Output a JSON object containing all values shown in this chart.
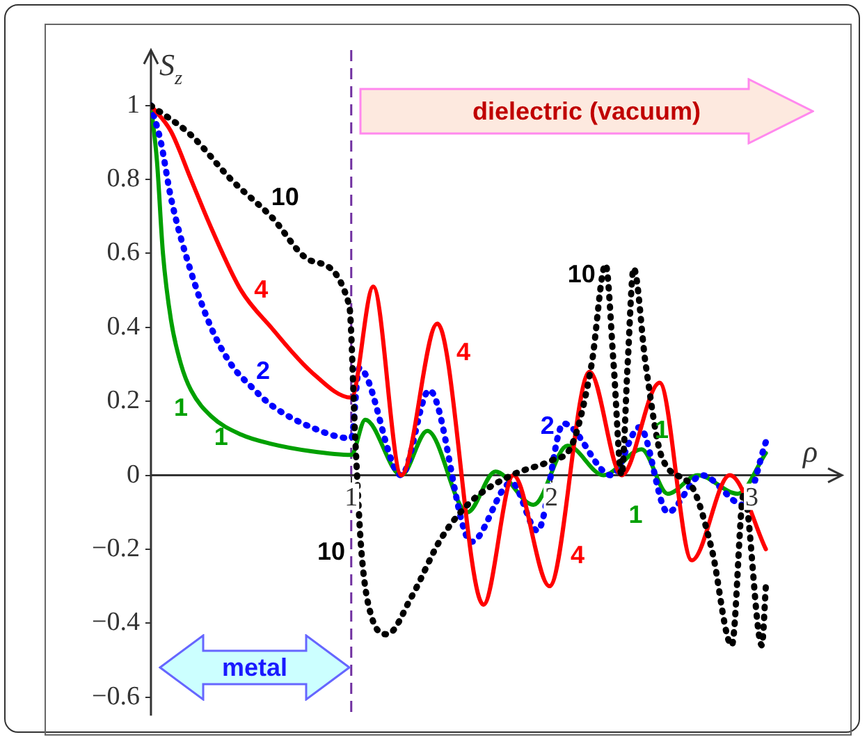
{
  "chart_data": {
    "type": "line",
    "xlabel": "ρ",
    "ylabel": "S$_{z}$",
    "xlim": [
      0,
      3.45
    ],
    "xticks": [
      1,
      2,
      3
    ],
    "ylim": [
      -0.65,
      1.15
    ],
    "yticks": [
      {
        "value": -0.6,
        "label": "−0.6"
      },
      {
        "value": -0.4,
        "label": "−0.4"
      },
      {
        "value": -0.2,
        "label": "−0.2"
      },
      0,
      0.2,
      0.4,
      0.6,
      0.8,
      1
    ],
    "grid": false,
    "legend": false,
    "marker": "none",
    "ref_lines": [
      {
        "axis": "x",
        "value": 1,
        "color": "#7030a0",
        "line_style": "dashed"
      }
    ],
    "series": [
      {
        "name": "10",
        "color": "#000000",
        "line_style": "dotted",
        "x": [
          0,
          0.2,
          0.4,
          0.6,
          0.8,
          0.99,
          1.02,
          1.05,
          1.1,
          1.18,
          1.3,
          1.45,
          1.6,
          1.8,
          2.0,
          2.1,
          2.2,
          2.27,
          2.31,
          2.35,
          2.38,
          2.41,
          2.47,
          2.55,
          2.7,
          2.8,
          2.9,
          2.96,
          3.05,
          3.07
        ],
        "values": [
          1,
          0.92,
          0.8,
          0.7,
          0.58,
          0.46,
          0.1,
          -0.2,
          -0.38,
          -0.43,
          -0.33,
          -0.17,
          -0.07,
          0,
          0.04,
          0.08,
          0.3,
          0.57,
          0.3,
          0,
          0.3,
          0.56,
          0.3,
          0.05,
          -0.03,
          -0.2,
          -0.46,
          -0.05,
          -0.46,
          -0.3
        ]
      },
      {
        "name": "4",
        "color": "#ff0000",
        "line_style": "solid",
        "x": [
          0,
          0.1,
          0.2,
          0.3,
          0.45,
          0.6,
          0.8,
          1.0,
          1.11,
          1.25,
          1.43,
          1.66,
          1.81,
          1.99,
          2.19,
          2.35,
          2.54,
          2.7,
          2.89,
          3.07
        ],
        "values": [
          1,
          0.93,
          0.8,
          0.67,
          0.5,
          0.4,
          0.28,
          0.21,
          0.51,
          0,
          0.41,
          -0.35,
          0,
          -0.3,
          0.28,
          0,
          0.25,
          -0.23,
          0,
          -0.2
        ]
      },
      {
        "name": "2",
        "color": "#0000ff",
        "line_style": "dotted",
        "x": [
          0,
          0.05,
          0.1,
          0.2,
          0.3,
          0.4,
          0.5,
          0.6,
          0.8,
          1.0,
          1.04,
          1.25,
          1.39,
          1.6,
          1.8,
          1.93,
          2.06,
          2.3,
          2.44,
          2.58,
          2.75,
          2.96,
          3.07
        ],
        "values": [
          1,
          0.9,
          0.75,
          0.55,
          0.4,
          0.3,
          0.24,
          0.19,
          0.13,
          0.1,
          0.29,
          0,
          0.23,
          -0.18,
          -0.02,
          -0.15,
          0.14,
          0,
          0.13,
          -0.1,
          0,
          -0.08,
          0.09
        ]
      },
      {
        "name": "1",
        "color": "#00a000",
        "line_style": "solid",
        "x": [
          0,
          0.03,
          0.06,
          0.1,
          0.15,
          0.2,
          0.3,
          0.45,
          0.6,
          0.8,
          1.0,
          1.07,
          1.25,
          1.38,
          1.58,
          1.72,
          1.91,
          2.08,
          2.26,
          2.45,
          2.58,
          2.73,
          2.93,
          3.07
        ],
        "values": [
          1,
          0.85,
          0.6,
          0.42,
          0.3,
          0.23,
          0.16,
          0.11,
          0.085,
          0.065,
          0.055,
          0.15,
          0,
          0.12,
          -0.1,
          0.01,
          -0.08,
          0.08,
          0,
          0.07,
          -0.05,
          0,
          -0.05,
          0.06
        ]
      }
    ],
    "annotations": [
      "dielectric (vacuum)",
      "metal",
      "10",
      "10",
      "4",
      "4",
      "2",
      "1",
      "1",
      "1"
    ]
  }
}
